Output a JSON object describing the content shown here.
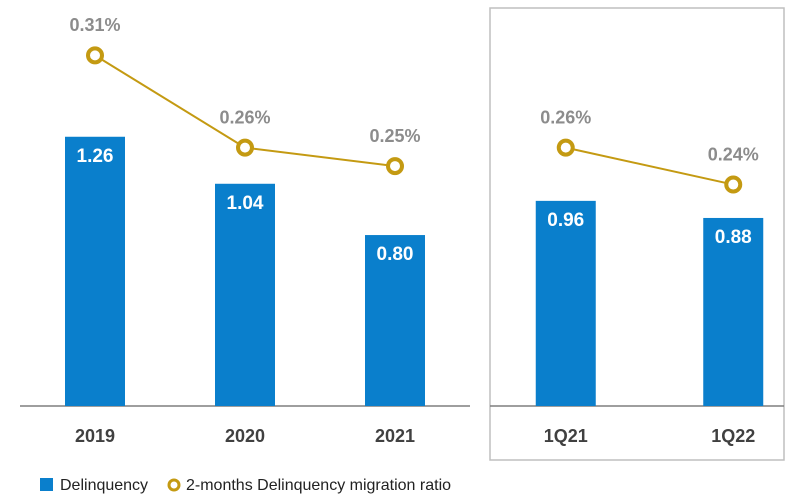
{
  "chart_data": [
    {
      "type": "bar_line",
      "categories": [
        "2019",
        "2020",
        "2021"
      ],
      "ylim": [
        0,
        1.9
      ],
      "y2lim": [
        0.12,
        0.34
      ],
      "series": [
        {
          "name": "Delinquency",
          "color": "#0a7fcc",
          "values": [
            1.26,
            1.04,
            0.8
          ],
          "value_labels": [
            "1.26",
            "1.04",
            "0.80"
          ]
        },
        {
          "name": "2-months Delinquency migration ratio",
          "color": "#c49a12",
          "axis": "y2",
          "values": [
            0.31,
            0.26,
            0.25
          ],
          "value_labels": [
            "0.31%",
            "0.26%",
            "0.25%"
          ]
        }
      ]
    },
    {
      "type": "bar_line",
      "categories": [
        "1Q21",
        "1Q22"
      ],
      "ylim": [
        0,
        1.9
      ],
      "y2lim": [
        0.12,
        0.34
      ],
      "series": [
        {
          "color": "#0a7fcc",
          "values": [
            0.96,
            0.88
          ],
          "value_labels": [
            "0.96",
            "0.88"
          ]
        },
        {
          "color": "#c49a12",
          "axis": "y2",
          "values": [
            0.26,
            0.24
          ],
          "value_labels": [
            "0.26%",
            "0.24%"
          ]
        }
      ]
    }
  ]
}
